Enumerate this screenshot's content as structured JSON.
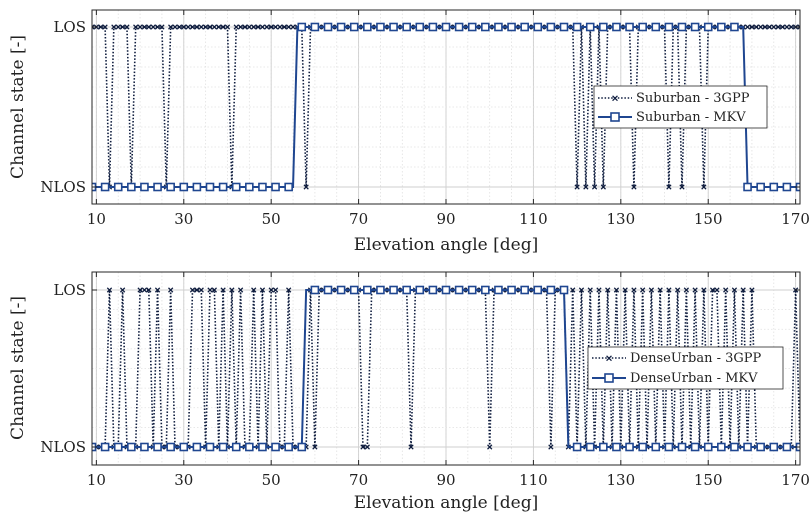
{
  "chart_data": [
    {
      "type": "line",
      "xlabel": "Elevation angle [deg]",
      "ylabel": "Channel state [-]",
      "xlim": [
        9,
        171
      ],
      "xticks": [
        10,
        30,
        50,
        70,
        90,
        110,
        130,
        150,
        170
      ],
      "yticks": [
        0,
        1
      ],
      "ytick_labels": [
        "NLOS",
        "LOS"
      ],
      "grid": true,
      "legend": "right",
      "series": [
        {
          "name": "Suburban - 3GPP",
          "x": [
            9,
            10,
            11,
            12,
            13,
            14,
            15,
            16,
            17,
            18,
            19,
            20,
            21,
            22,
            23,
            24,
            25,
            26,
            27,
            28,
            29,
            30,
            31,
            32,
            33,
            34,
            35,
            36,
            37,
            38,
            39,
            40,
            41,
            42,
            43,
            44,
            45,
            46,
            47,
            48,
            49,
            50,
            51,
            52,
            53,
            54,
            55,
            56,
            57,
            58,
            59,
            60,
            61,
            62,
            63,
            64,
            65,
            66,
            67,
            68,
            69,
            70,
            71,
            72,
            73,
            74,
            75,
            76,
            77,
            78,
            79,
            80,
            81,
            82,
            83,
            84,
            85,
            86,
            87,
            88,
            89,
            90,
            91,
            92,
            93,
            94,
            95,
            96,
            97,
            98,
            99,
            100,
            101,
            102,
            103,
            104,
            105,
            106,
            107,
            108,
            109,
            110,
            111,
            112,
            113,
            114,
            115,
            116,
            117,
            118,
            119,
            120,
            121,
            122,
            123,
            124,
            125,
            126,
            127,
            128,
            129,
            130,
            131,
            132,
            133,
            134,
            135,
            136,
            137,
            138,
            139,
            140,
            141,
            142,
            143,
            144,
            145,
            146,
            147,
            148,
            149,
            150,
            151,
            152,
            153,
            154,
            155,
            156,
            157,
            158,
            159,
            160,
            161,
            162,
            163,
            164,
            165,
            166,
            167,
            168,
            169,
            170,
            171
          ],
          "y": [
            1,
            1,
            1,
            1,
            0,
            1,
            1,
            1,
            1,
            0,
            1,
            1,
            1,
            1,
            1,
            1,
            1,
            0,
            1,
            1,
            1,
            1,
            1,
            1,
            1,
            1,
            1,
            1,
            1,
            1,
            1,
            1,
            0,
            1,
            1,
            1,
            1,
            1,
            1,
            1,
            1,
            1,
            1,
            1,
            1,
            1,
            1,
            1,
            1,
            0,
            1,
            1,
            1,
            1,
            1,
            1,
            1,
            1,
            1,
            1,
            1,
            1,
            1,
            1,
            1,
            1,
            1,
            1,
            1,
            1,
            1,
            1,
            1,
            1,
            1,
            1,
            1,
            1,
            1,
            1,
            1,
            1,
            1,
            1,
            1,
            1,
            1,
            1,
            1,
            1,
            1,
            1,
            1,
            1,
            1,
            1,
            1,
            1,
            1,
            1,
            1,
            1,
            1,
            1,
            1,
            1,
            1,
            1,
            1,
            1,
            1,
            0,
            1,
            0,
            1,
            0,
            1,
            0,
            1,
            1,
            1,
            1,
            1,
            1,
            0,
            1,
            1,
            1,
            1,
            1,
            1,
            1,
            0,
            1,
            1,
            0,
            1,
            1,
            1,
            1,
            0,
            1,
            1,
            1,
            1,
            1,
            1,
            1,
            1,
            1,
            1,
            1,
            1,
            1,
            1,
            1,
            1,
            1,
            1,
            1,
            1,
            1,
            1
          ]
        },
        {
          "name": "Suburban - MKV",
          "x": [
            9,
            55,
            56,
            158,
            159,
            171
          ],
          "y": [
            0,
            0,
            1,
            1,
            0,
            0
          ]
        }
      ]
    },
    {
      "type": "line",
      "xlabel": "Elevation angle [deg]",
      "ylabel": "Channel state [-]",
      "xlim": [
        9,
        171
      ],
      "xticks": [
        10,
        30,
        50,
        70,
        90,
        110,
        130,
        150,
        170
      ],
      "yticks": [
        0,
        1
      ],
      "ytick_labels": [
        "NLOS",
        "LOS"
      ],
      "grid": true,
      "legend": "right",
      "series": [
        {
          "name": "DenseUrban - 3GPP",
          "x": [
            9,
            10,
            11,
            12,
            13,
            14,
            15,
            16,
            17,
            18,
            19,
            20,
            21,
            22,
            23,
            24,
            25,
            26,
            27,
            28,
            29,
            30,
            31,
            32,
            33,
            34,
            35,
            36,
            37,
            38,
            39,
            40,
            41,
            42,
            43,
            44,
            45,
            46,
            47,
            48,
            49,
            50,
            51,
            52,
            53,
            54,
            55,
            56,
            57,
            58,
            59,
            60,
            61,
            62,
            63,
            64,
            65,
            66,
            67,
            68,
            69,
            70,
            71,
            72,
            73,
            74,
            75,
            76,
            77,
            78,
            79,
            80,
            81,
            82,
            83,
            84,
            85,
            86,
            87,
            88,
            89,
            90,
            91,
            92,
            93,
            94,
            95,
            96,
            97,
            98,
            99,
            100,
            101,
            102,
            103,
            104,
            105,
            106,
            107,
            108,
            109,
            110,
            111,
            112,
            113,
            114,
            115,
            116,
            117,
            118,
            119,
            120,
            121,
            122,
            123,
            124,
            125,
            126,
            127,
            128,
            129,
            130,
            131,
            132,
            133,
            134,
            135,
            136,
            137,
            138,
            139,
            140,
            141,
            142,
            143,
            144,
            145,
            146,
            147,
            148,
            149,
            150,
            151,
            152,
            153,
            154,
            155,
            156,
            157,
            158,
            159,
            160,
            161,
            162,
            163,
            164,
            165,
            166,
            167,
            168,
            169,
            170,
            171
          ],
          "y": [
            0,
            0,
            0,
            0,
            1,
            0,
            0,
            1,
            0,
            0,
            0,
            1,
            1,
            1,
            0,
            1,
            0,
            0,
            1,
            0,
            0,
            0,
            0,
            1,
            1,
            1,
            0,
            1,
            1,
            0,
            1,
            0,
            1,
            0,
            1,
            0,
            0,
            1,
            0,
            1,
            0,
            1,
            1,
            0,
            0,
            1,
            0,
            0,
            0,
            0,
            1,
            0,
            1,
            1,
            1,
            1,
            1,
            1,
            1,
            1,
            1,
            1,
            0,
            0,
            1,
            1,
            1,
            1,
            1,
            1,
            1,
            1,
            1,
            0,
            1,
            1,
            1,
            1,
            1,
            1,
            1,
            1,
            1,
            1,
            1,
            1,
            1,
            1,
            1,
            1,
            1,
            0,
            1,
            1,
            1,
            1,
            1,
            1,
            1,
            1,
            1,
            1,
            1,
            1,
            1,
            0,
            1,
            1,
            1,
            0,
            1,
            0,
            1,
            0,
            1,
            0,
            1,
            0,
            1,
            0,
            1,
            0,
            1,
            0,
            1,
            0,
            1,
            0,
            1,
            0,
            1,
            0,
            1,
            0,
            1,
            0,
            1,
            0,
            1,
            0,
            1,
            0,
            1,
            1,
            0,
            1,
            0,
            1,
            0,
            1,
            0,
            1,
            0,
            0,
            0,
            0,
            0,
            0,
            0,
            0,
            0,
            1,
            0
          ]
        },
        {
          "name": "DenseUrban - MKV",
          "x": [
            9,
            57,
            58,
            117,
            118,
            171
          ],
          "y": [
            0,
            0,
            1,
            1,
            0,
            0
          ]
        }
      ]
    }
  ]
}
